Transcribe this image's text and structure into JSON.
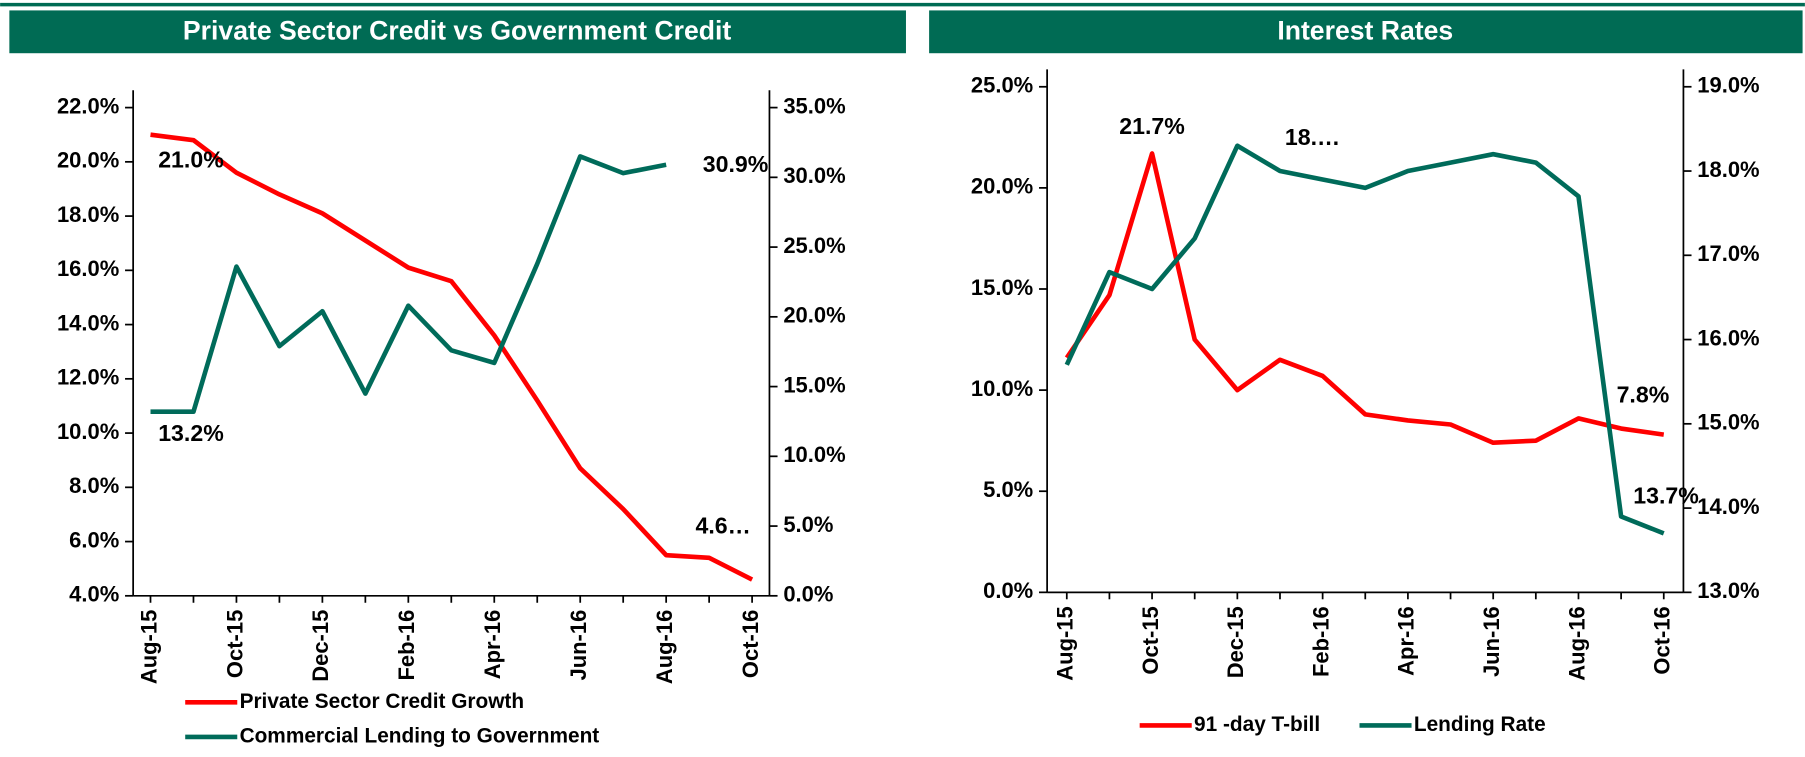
{
  "chart_data": [
    {
      "type": "line",
      "title": "Private Sector Credit vs Government Credit",
      "categories": [
        "Aug-15",
        null,
        "Oct-15",
        null,
        "Dec-15",
        null,
        "Feb-16",
        null,
        "Apr-16",
        null,
        "Jun-16",
        null,
        "Aug-16",
        null,
        "Oct-16"
      ],
      "series": [
        {
          "name": "Private Sector Credit Growth",
          "color": "#ff0000",
          "axis": "y",
          "values": [
            21.0,
            20.8,
            19.6,
            18.8,
            18.1,
            17.1,
            16.1,
            15.6,
            13.6,
            11.2,
            8.7,
            7.2,
            5.5,
            5.4,
            4.6
          ],
          "value_labels": [
            "21.0%",
            null,
            null,
            null,
            null,
            null,
            null,
            null,
            null,
            null,
            null,
            null,
            null,
            null,
            "4.6…"
          ]
        },
        {
          "name": "Commercial Lending to Government",
          "color": "#006b5a",
          "axis": "y2",
          "values": [
            13.2,
            13.2,
            23.6,
            17.9,
            20.4,
            14.5,
            20.8,
            17.6,
            16.7,
            23.8,
            31.5,
            30.3,
            30.9,
            null,
            null
          ],
          "value_labels": [
            "13.2%",
            null,
            null,
            null,
            null,
            null,
            null,
            null,
            null,
            null,
            null,
            null,
            "30.9%",
            null,
            null
          ]
        }
      ],
      "ylim": [
        4,
        22
      ],
      "yticks": [
        {
          "value": 4,
          "label": "4.0%"
        },
        {
          "value": 6,
          "label": "6.0%"
        },
        {
          "value": 8,
          "label": "8.0%"
        },
        {
          "value": 10,
          "label": "10.0%"
        },
        {
          "value": 12,
          "label": "12.0%"
        },
        {
          "value": 14,
          "label": "14.0%"
        },
        {
          "value": 16,
          "label": "16.0%"
        },
        {
          "value": 18,
          "label": "18.0%"
        },
        {
          "value": 20,
          "label": "20.0%"
        },
        {
          "value": 22,
          "label": "22.0%"
        }
      ],
      "y2lim": [
        0,
        35
      ],
      "y2ticks": [
        {
          "value": 0,
          "label": "0.0%"
        },
        {
          "value": 5,
          "label": "5.0%"
        },
        {
          "value": 10,
          "label": "10.0%"
        },
        {
          "value": 15,
          "label": "15.0%"
        },
        {
          "value": 20,
          "label": "20.0%"
        },
        {
          "value": 25,
          "label": "25.0%"
        },
        {
          "value": 30,
          "label": "30.0%"
        },
        {
          "value": 35,
          "label": "35.0%"
        }
      ],
      "legend": "bottom-left"
    },
    {
      "type": "line",
      "title": "Interest Rates",
      "categories": [
        "Aug-15",
        null,
        "Oct-15",
        null,
        "Dec-15",
        null,
        "Feb-16",
        null,
        "Apr-16",
        null,
        "Jun-16",
        null,
        "Aug-16",
        null,
        "Oct-16"
      ],
      "series": [
        {
          "name": "91 -day T-bill",
          "color": "#ff0000",
          "axis": "y",
          "values": [
            11.6,
            14.7,
            21.7,
            12.5,
            10.0,
            11.5,
            10.7,
            8.8,
            8.5,
            8.3,
            7.4,
            7.5,
            8.6,
            8.1,
            7.8
          ],
          "value_labels": [
            null,
            null,
            "21.7%",
            null,
            null,
            null,
            null,
            null,
            null,
            null,
            null,
            null,
            null,
            null,
            "7.8%"
          ]
        },
        {
          "name": "Lending Rate",
          "color": "#006b5a",
          "axis": "y2",
          "values": [
            15.7,
            16.8,
            16.6,
            17.2,
            18.3,
            18.0,
            17.9,
            17.8,
            18.0,
            18.1,
            18.2,
            18.1,
            17.7,
            13.9,
            13.7
          ],
          "value_labels": [
            null,
            null,
            null,
            null,
            "18.…",
            null,
            null,
            null,
            null,
            null,
            null,
            null,
            null,
            null,
            "13.7%"
          ]
        }
      ],
      "ylim": [
        0,
        25
      ],
      "yticks": [
        {
          "value": 0,
          "label": "0.0%"
        },
        {
          "value": 5,
          "label": "5.0%"
        },
        {
          "value": 10,
          "label": "10.0%"
        },
        {
          "value": 15,
          "label": "15.0%"
        },
        {
          "value": 20,
          "label": "20.0%"
        },
        {
          "value": 25,
          "label": "25.0%"
        }
      ],
      "y2lim": [
        13,
        19
      ],
      "y2ticks": [
        {
          "value": 13,
          "label": "13.0%"
        },
        {
          "value": 14,
          "label": "14.0%"
        },
        {
          "value": 15,
          "label": "15.0%"
        },
        {
          "value": 16,
          "label": "16.0%"
        },
        {
          "value": 17,
          "label": "17.0%"
        },
        {
          "value": 18,
          "label": "18.0%"
        },
        {
          "value": 19,
          "label": "19.0%"
        }
      ],
      "legend": "bottom"
    }
  ]
}
